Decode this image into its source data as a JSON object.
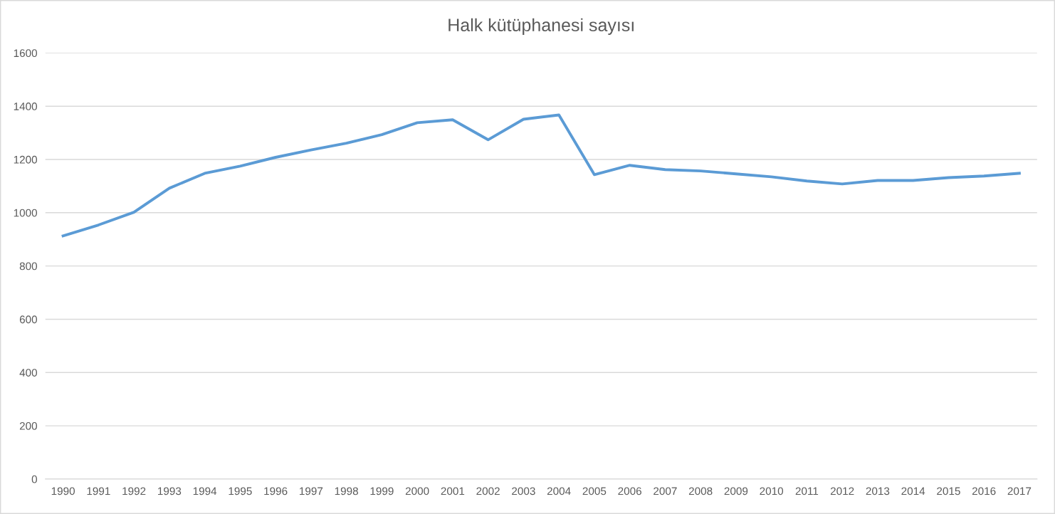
{
  "chart_data": {
    "type": "line",
    "title": "Halk kütüphanesi sayısı",
    "categories": [
      "1990",
      "1991",
      "1992",
      "1993",
      "1994",
      "1995",
      "1996",
      "1997",
      "1998",
      "1999",
      "2000",
      "2001",
      "2002",
      "2003",
      "2004",
      "2005",
      "2006",
      "2007",
      "2008",
      "2009",
      "2010",
      "2011",
      "2012",
      "2013",
      "2014",
      "2015",
      "2016",
      "2017"
    ],
    "series": [
      {
        "color": "#5b9bd5",
        "values": [
          913,
          954,
          1002,
          1092,
          1148,
          1175,
          1208,
          1236,
          1261,
          1293,
          1338,
          1349,
          1274,
          1351,
          1367,
          1143,
          1178,
          1162,
          1157,
          1146,
          1135,
          1119,
          1108,
          1121,
          1121,
          1132,
          1138,
          1148
        ]
      }
    ],
    "ylim": [
      0,
      1600
    ],
    "yticks": [
      0,
      200,
      400,
      600,
      800,
      1000,
      1200,
      1400,
      1600
    ],
    "grid": "y",
    "legend": false,
    "marker": "none",
    "line_style": "solid"
  }
}
